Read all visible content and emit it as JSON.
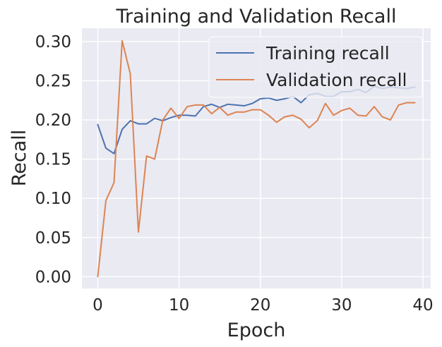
{
  "chart_data": {
    "type": "line",
    "title": "Training and Validation Recall",
    "xlabel": "Epoch",
    "ylabel": "Recall",
    "xlim": [
      -1.95,
      40.95
    ],
    "ylim": [
      -0.015,
      0.317
    ],
    "xticks": [
      0,
      10,
      20,
      30,
      40
    ],
    "xtick_labels": [
      "0",
      "10",
      "20",
      "30",
      "40"
    ],
    "yticks": [
      0.0,
      0.05,
      0.1,
      0.15,
      0.2,
      0.25,
      0.3
    ],
    "ytick_labels": [
      "0.00",
      "0.05",
      "0.10",
      "0.15",
      "0.20",
      "0.25",
      "0.30"
    ],
    "grid": true,
    "legend_position": "top-right",
    "x": [
      0,
      1,
      2,
      3,
      4,
      5,
      6,
      7,
      8,
      9,
      10,
      11,
      12,
      13,
      14,
      15,
      16,
      17,
      18,
      19,
      20,
      21,
      22,
      23,
      24,
      25,
      26,
      27,
      28,
      29,
      30,
      31,
      32,
      33,
      34,
      35,
      36,
      37,
      38,
      39
    ],
    "series": [
      {
        "name": "Training recall",
        "color": "#4c72b0",
        "values": [
          0.194,
          0.164,
          0.157,
          0.188,
          0.199,
          0.195,
          0.195,
          0.202,
          0.199,
          0.203,
          0.206,
          0.206,
          0.205,
          0.217,
          0.22,
          0.216,
          0.22,
          0.219,
          0.218,
          0.221,
          0.227,
          0.228,
          0.225,
          0.227,
          0.23,
          0.222,
          0.232,
          0.234,
          0.23,
          0.23,
          0.236,
          0.236,
          0.239,
          0.235,
          0.243,
          0.24,
          0.242,
          0.241,
          0.24,
          0.242
        ]
      },
      {
        "name": "Validation recall",
        "color": "#dd8452",
        "values": [
          0.0,
          0.097,
          0.12,
          0.301,
          0.259,
          0.057,
          0.154,
          0.15,
          0.2,
          0.215,
          0.202,
          0.217,
          0.219,
          0.219,
          0.208,
          0.216,
          0.206,
          0.21,
          0.21,
          0.213,
          0.213,
          0.206,
          0.197,
          0.204,
          0.206,
          0.201,
          0.19,
          0.199,
          0.221,
          0.206,
          0.212,
          0.215,
          0.206,
          0.205,
          0.217,
          0.204,
          0.2,
          0.219,
          0.222,
          0.222
        ]
      }
    ]
  }
}
